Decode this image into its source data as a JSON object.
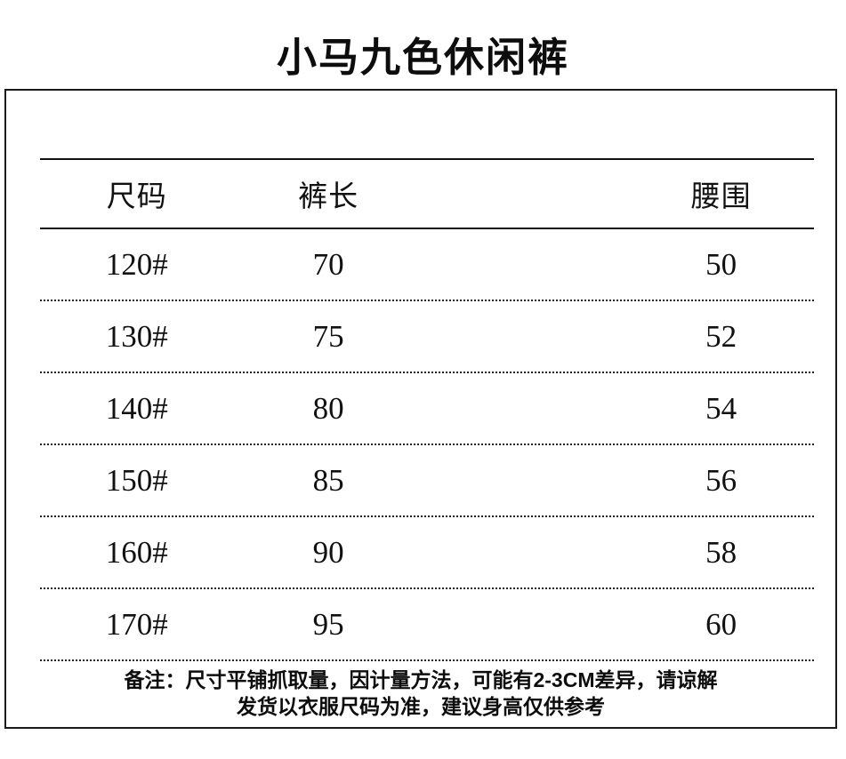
{
  "title": "小马九色休闲裤",
  "colors": {
    "text": "#111111",
    "border": "#1a1a1a",
    "background": "#ffffff"
  },
  "chart_data": {
    "type": "table",
    "title": "小马九色休闲裤",
    "columns": [
      "尺码",
      "裤长",
      "腰围"
    ],
    "rows": [
      [
        "120#",
        "70",
        "50"
      ],
      [
        "130#",
        "75",
        "52"
      ],
      [
        "140#",
        "80",
        "54"
      ],
      [
        "150#",
        "85",
        "56"
      ],
      [
        "160#",
        "90",
        "58"
      ],
      [
        "170#",
        "95",
        "60"
      ]
    ],
    "notes": [
      "备注：尺寸平铺抓取量，因计量方法，可能有2-3CM差异，请谅解",
      "发货以衣服尺码为准，建议身高仅供参考"
    ]
  }
}
